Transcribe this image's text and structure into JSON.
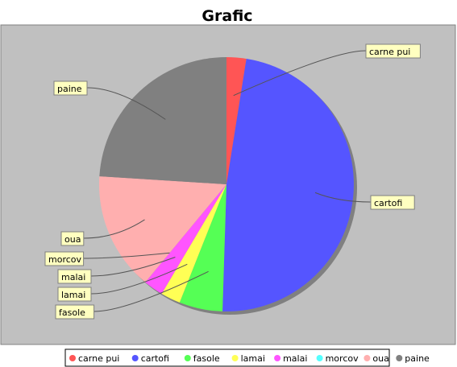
{
  "chart_data": {
    "type": "pie",
    "title": "Grafic",
    "slices": [
      {
        "label": "carne pui",
        "value": 2.5,
        "color": "#FF5555"
      },
      {
        "label": "cartofi",
        "value": 48.0,
        "color": "#5555FF"
      },
      {
        "label": "fasole",
        "value": 5.5,
        "color": "#55FF55"
      },
      {
        "label": "lamai",
        "value": 2.5,
        "color": "#FFFF55"
      },
      {
        "label": "malai",
        "value": 2.5,
        "color": "#FF55FF"
      },
      {
        "label": "morcov",
        "value": 0.0,
        "color": "#55FFFF"
      },
      {
        "label": "oua",
        "value": 15.0,
        "color": "#FFAFAF"
      },
      {
        "label": "paine",
        "value": 24.0,
        "color": "#808080"
      }
    ],
    "legend_position": "bottom",
    "plot_background": "#C0C0C0",
    "label_background": "#FFFFC0"
  }
}
